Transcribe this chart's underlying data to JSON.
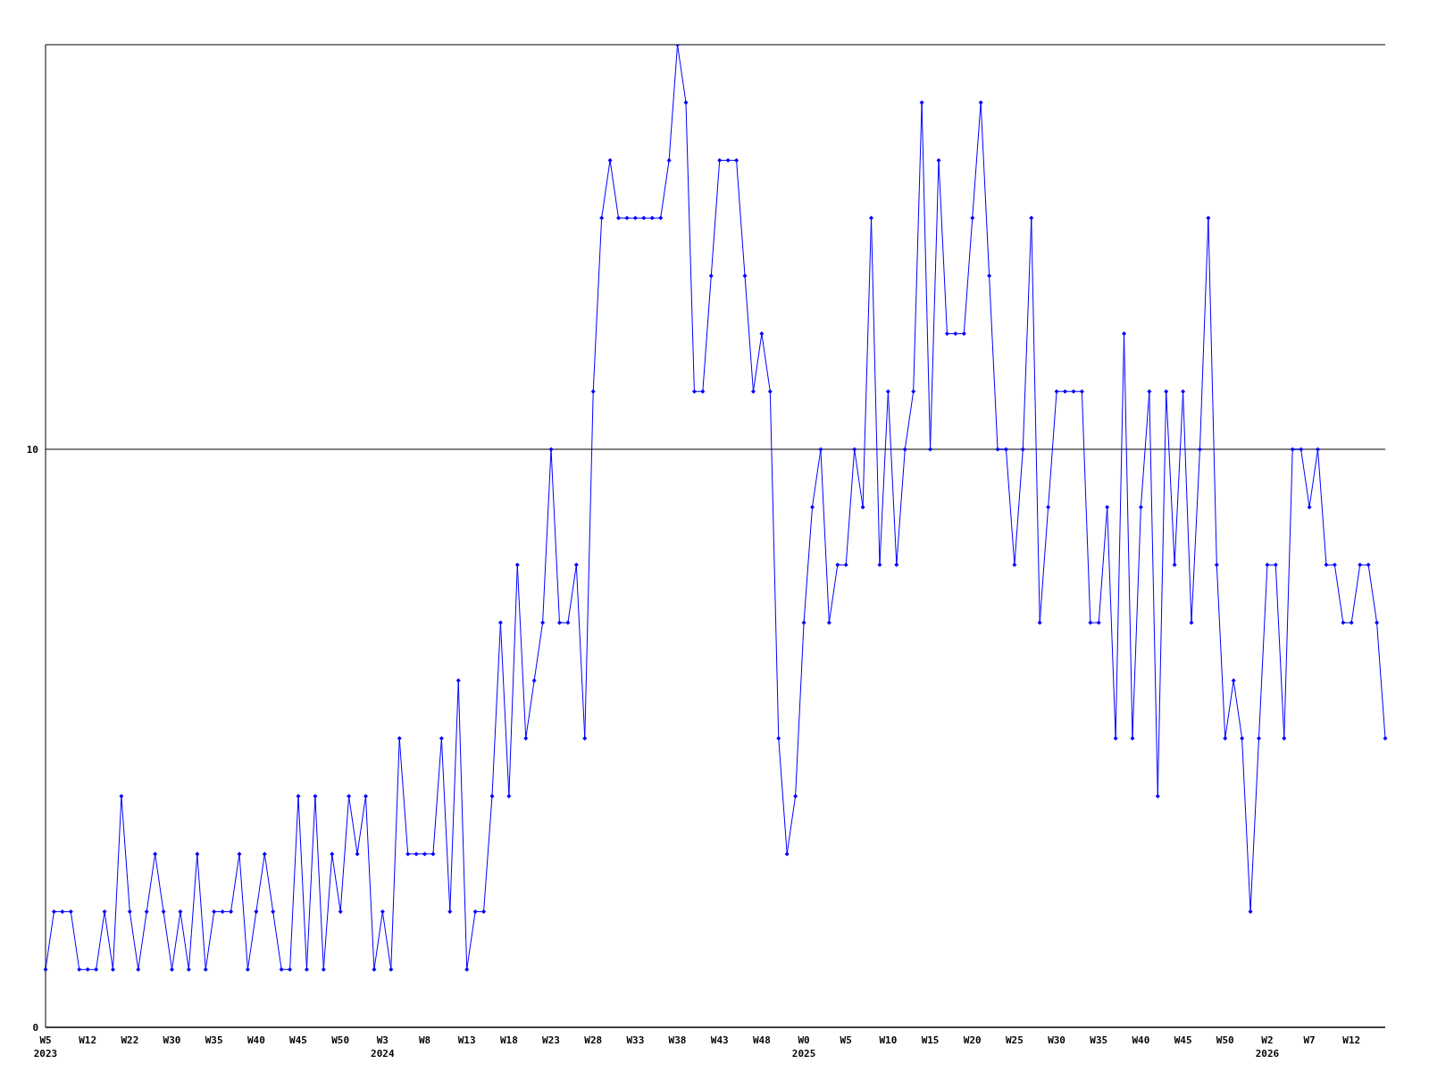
{
  "chart_data": {
    "type": "line",
    "categories": [
      "W5\n2023",
      null,
      null,
      null,
      null,
      "W12",
      null,
      null,
      null,
      null,
      "W22",
      null,
      null,
      null,
      null,
      "W30",
      null,
      null,
      null,
      null,
      "W35",
      null,
      null,
      null,
      null,
      "W40",
      null,
      null,
      null,
      null,
      "W45",
      null,
      null,
      null,
      null,
      "W50",
      null,
      null,
      null,
      null,
      "W3\n2024",
      null,
      null,
      null,
      null,
      "W8",
      null,
      null,
      null,
      null,
      "W13",
      null,
      null,
      null,
      null,
      "W18",
      null,
      null,
      null,
      null,
      "W23",
      null,
      null,
      null,
      null,
      "W28",
      null,
      null,
      null,
      null,
      "W33",
      null,
      null,
      null,
      null,
      "W38",
      null,
      null,
      null,
      null,
      "W43",
      null,
      null,
      null,
      null,
      "W48",
      null,
      null,
      null,
      null,
      "W0\n2025",
      null,
      null,
      null,
      null,
      "W5",
      null,
      null,
      null,
      null,
      "W10",
      null,
      null,
      null,
      null,
      "W15",
      null,
      null,
      null,
      null,
      "W20",
      null,
      null,
      null,
      null,
      "W25",
      null,
      null,
      null,
      null,
      "W30",
      null,
      null,
      null,
      null,
      "W35",
      null,
      null,
      null,
      null,
      "W40",
      null,
      null,
      null,
      null,
      "W45",
      null,
      null,
      null,
      null,
      "W50",
      null,
      null,
      null,
      null,
      "W2\n2026",
      null,
      null,
      null,
      null,
      "W7",
      null,
      null,
      null,
      null,
      "W12",
      null,
      null,
      null,
      null
    ],
    "series": [
      {
        "color": "#0000ff",
        "values": [
          1,
          2,
          2,
          2,
          1,
          1,
          1,
          2,
          1,
          4,
          2,
          1,
          2,
          3,
          2,
          1,
          2,
          1,
          3,
          1,
          2,
          2,
          2,
          3,
          1,
          2,
          3,
          2,
          1,
          1,
          4,
          1,
          4,
          1,
          3,
          2,
          4,
          3,
          4,
          1,
          2,
          1,
          5,
          3,
          3,
          3,
          3,
          5,
          2,
          6,
          1,
          2,
          2,
          4,
          7,
          4,
          8,
          5,
          6,
          7,
          10,
          7,
          7,
          8,
          5,
          11,
          14,
          15,
          14,
          14,
          14,
          14,
          14,
          14,
          15,
          17,
          16,
          11,
          11,
          13,
          15,
          15,
          15,
          13,
          11,
          12,
          11,
          5,
          3,
          4,
          7,
          9,
          10,
          7,
          8,
          8,
          10,
          9,
          14,
          8,
          11,
          8,
          10,
          11,
          16,
          10,
          15,
          12,
          12,
          12,
          14,
          16,
          13,
          10,
          10,
          8,
          10,
          14,
          7,
          9,
          11,
          11,
          11,
          11,
          7,
          7,
          9,
          5,
          12,
          5,
          9,
          11,
          4,
          11,
          8,
          11,
          7,
          10,
          14,
          8,
          5,
          6,
          5,
          2,
          5,
          8,
          8,
          5,
          10,
          10,
          9,
          10,
          8,
          8,
          7,
          7,
          8,
          8,
          7,
          5
        ]
      }
    ],
    "ylim": [
      0,
      17
    ],
    "yticks": [
      0,
      10
    ],
    "grid": "y",
    "marker": "diamond",
    "line_style": "solid"
  }
}
